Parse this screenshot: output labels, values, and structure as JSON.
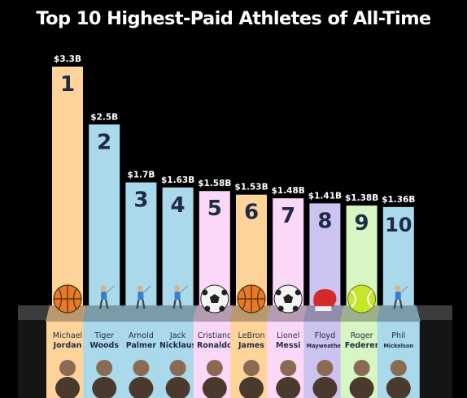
{
  "chart_data": {
    "type": "bar",
    "title": "Top 10 Highest-Paid Athletes of All-Time",
    "ylim": [
      0,
      3.3
    ],
    "grid": false,
    "legend": "none",
    "bars": [
      {
        "rank": "1",
        "value": 3.3,
        "label": "$3.3B",
        "first": "Michael",
        "last": "Jordan",
        "icon": "basketball-icon",
        "color": "#ffd49a"
      },
      {
        "rank": "2",
        "value": 2.5,
        "label": "$2.5B",
        "first": "Tiger",
        "last": "Woods",
        "icon": "golfer-icon",
        "color": "#a9d9ea"
      },
      {
        "rank": "3",
        "value": 1.7,
        "label": "$1.7B",
        "first": "Arnold",
        "last": "Palmer",
        "icon": "golfer-icon",
        "color": "#a9d9ea"
      },
      {
        "rank": "4",
        "value": 1.63,
        "label": "$1.63B",
        "first": "Jack",
        "last": "Nicklaus",
        "icon": "golfer-icon",
        "color": "#a9d9ea"
      },
      {
        "rank": "5",
        "value": 1.58,
        "label": "$1.58B",
        "first": "Cristiano",
        "last": "Ronaldo",
        "icon": "soccer-ball-icon",
        "color": "#fcd8f8"
      },
      {
        "rank": "6",
        "value": 1.53,
        "label": "$1.53B",
        "first": "LeBron",
        "last": "James",
        "icon": "basketball-icon",
        "color": "#ffd49a"
      },
      {
        "rank": "7",
        "value": 1.48,
        "label": "$1.48B",
        "first": "Lionel",
        "last": "Messi",
        "icon": "soccer-ball-icon",
        "color": "#fcd8f8"
      },
      {
        "rank": "8",
        "value": 1.41,
        "label": "$1.41B",
        "first": "Floyd",
        "last": "Mayweather",
        "icon": "boxing-glove-icon",
        "color": "#cdc3f0"
      },
      {
        "rank": "9",
        "value": 1.38,
        "label": "$1.38B",
        "first": "Roger",
        "last": "Federer",
        "icon": "tennis-ball-icon",
        "color": "#d8f5c4"
      },
      {
        "rank": "10",
        "value": 1.36,
        "label": "$1.36B",
        "first": "Phil",
        "last": "Mickelson",
        "icon": "golfer-icon",
        "color": "#a9d9ea"
      }
    ]
  }
}
